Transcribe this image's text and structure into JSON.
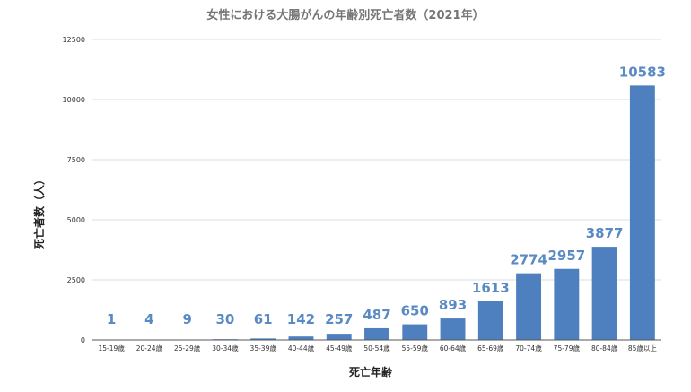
{
  "chart_data": {
    "type": "bar",
    "title": "女性における大腸がんの年齢別死亡者数（2021年）",
    "xlabel": "死亡年齢",
    "ylabel": "死亡者数（人）",
    "categories": [
      "15-19歳",
      "20-24歳",
      "25-29歳",
      "30-34歳",
      "35-39歳",
      "40-44歳",
      "45-49歳",
      "50-54歳",
      "55-59歳",
      "60-64歳",
      "65-69歳",
      "70-74歳",
      "75-79歳",
      "80-84歳",
      "85歳以上"
    ],
    "values": [
      1,
      4,
      9,
      30,
      61,
      142,
      257,
      487,
      650,
      893,
      1613,
      2774,
      2957,
      3877,
      10583
    ],
    "data_labels": [
      "1",
      "4",
      "9",
      "30",
      "61",
      "142",
      "257",
      "487",
      "650",
      "893",
      "1613",
      "2774",
      "2957",
      "3877",
      "10583"
    ],
    "ylim": [
      0,
      12500
    ],
    "yticks": [
      0,
      2500,
      5000,
      7500,
      10000,
      12500
    ],
    "grid": true,
    "legend": "none",
    "bar_color": "#4e7fbf",
    "label_color": "#5a8ac4"
  }
}
